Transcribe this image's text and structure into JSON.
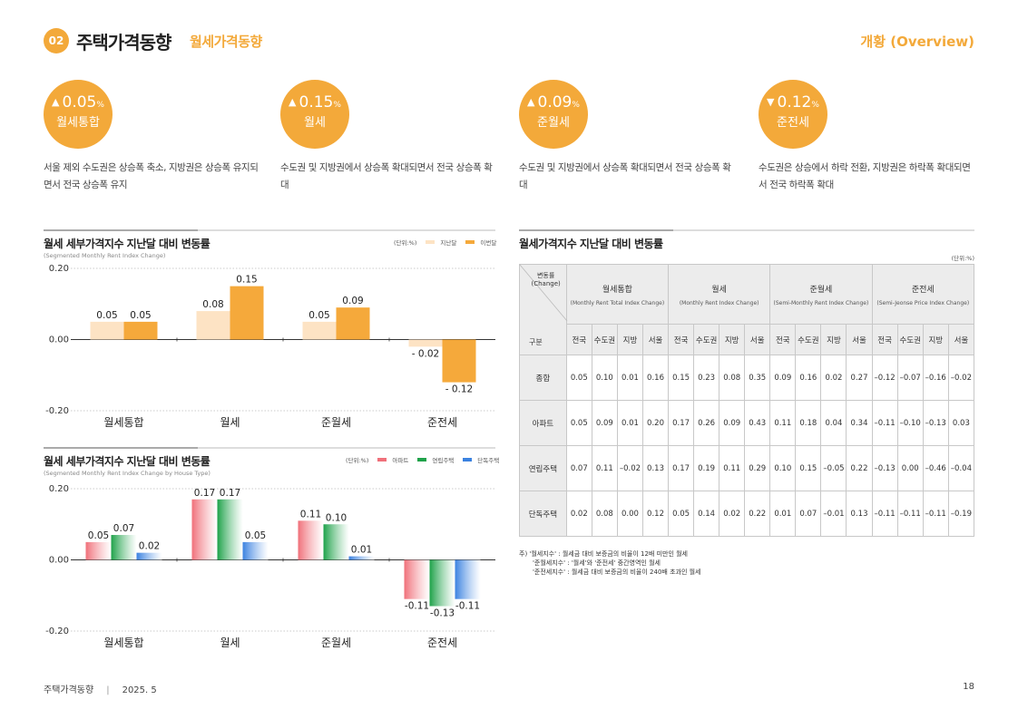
{
  "header": {
    "number": "02",
    "title": "주택가격동향",
    "subtitle": "월세가격동향",
    "right_label": "개황 (Overview)"
  },
  "summary": [
    {
      "direction": "up",
      "arrow": "▲",
      "value": "0.05",
      "unit": "%",
      "label": "월세통합",
      "text": "서울 제외 수도권은 상승폭 축소, 지방권은 상승폭 유지되면서 전국 상승폭 유지"
    },
    {
      "direction": "up",
      "arrow": "▲",
      "value": "0.15",
      "unit": "%",
      "label": "월세",
      "text": "수도권 및 지방권에서 상승폭 확대되면서 전국 상승폭 확대"
    },
    {
      "direction": "up",
      "arrow": "▲",
      "value": "0.09",
      "unit": "%",
      "label": "준월세",
      "text": "수도권 및 지방권에서 상승폭 확대되면서 전국 상승폭 확대"
    },
    {
      "direction": "down",
      "arrow": "▼",
      "value": "0.12",
      "unit": "%",
      "label": "준전세",
      "text": "수도권은 상승에서 하락 전환, 지방권은 하락폭 확대되면서 전국 하락폭 확대"
    }
  ],
  "chart1": {
    "title": "월세 세부가격지수 지난달 대비 변동률",
    "subtitle": "(Segmented Monthly Rent Index Change)",
    "unit": "(단위:%)"
  },
  "chart2": {
    "title": "월세 세부가격지수 지난달 대비 변동률",
    "subtitle": "(Segmented Monthly Rent Index Change by House Type)",
    "unit": "(단위:%)"
  },
  "chart_data": [
    {
      "type": "bar",
      "categories": [
        "월세통합",
        "월세",
        "준월세",
        "준전세"
      ],
      "series": [
        {
          "name": "지난달",
          "color": "#fde3c4",
          "values": [
            0.05,
            0.08,
            0.05,
            -0.02
          ],
          "labels": [
            "0.05",
            "0.08",
            "0.05",
            "- 0.02"
          ]
        },
        {
          "name": "이번달",
          "color": "#f5a93b",
          "values": [
            0.05,
            0.15,
            0.09,
            -0.12
          ],
          "labels": [
            "0.05",
            "0.15",
            "0.09",
            "- 0.12"
          ]
        }
      ],
      "ylim": [
        -0.2,
        0.2
      ],
      "ticks": [
        "0.20",
        "0.00",
        "-0.20"
      ],
      "legend": "top-right",
      "grid": true
    },
    {
      "type": "bar",
      "categories": [
        "월세통합",
        "월세",
        "준월세",
        "준전세"
      ],
      "series": [
        {
          "name": "아파트",
          "color": "#f0707a",
          "values": [
            0.05,
            0.17,
            0.11,
            -0.11
          ],
          "labels": [
            "0.05",
            "0.17",
            "0.11",
            "-0.11"
          ]
        },
        {
          "name": "연립주택",
          "color": "#1fa24a",
          "values": [
            0.07,
            0.17,
            0.1,
            -0.13
          ],
          "labels": [
            "0.07",
            "0.17",
            "0.10",
            "-0.13"
          ]
        },
        {
          "name": "단독주택",
          "color": "#3b82e0",
          "values": [
            0.02,
            0.05,
            0.01,
            -0.11
          ],
          "labels": [
            "0.02",
            "0.05",
            "0.01",
            "-0.11"
          ]
        }
      ],
      "ylim": [
        -0.2,
        0.2
      ],
      "ticks": [
        "0.20",
        "0.00",
        "-0.20"
      ],
      "legend": "top-right",
      "grid": true
    }
  ],
  "table": {
    "title": "월세가격지수 지난달 대비 변동률",
    "unit": "(단위:%)",
    "corner_top": "변동률",
    "corner_top_en": "(Change)",
    "corner_bottom": "구분",
    "groups": [
      {
        "name": "월세통합",
        "en": "(Monthly Rent Total Index Change)"
      },
      {
        "name": "월세",
        "en": "(Monthly Rent Index Change)"
      },
      {
        "name": "준월세",
        "en": "(Semi-Monthly Rent Index Change)"
      },
      {
        "name": "준전세",
        "en": "(Semi-Jeonse Price Index Change)"
      }
    ],
    "subcols": [
      "전국",
      "수도권",
      "지방",
      "서울"
    ],
    "rows": [
      {
        "label": "종합",
        "values": [
          "0.05",
          "0.10",
          "0.01",
          "0.16",
          "0.15",
          "0.23",
          "0.08",
          "0.35",
          "0.09",
          "0.16",
          "0.02",
          "0.27",
          "–0.12",
          "–0.07",
          "–0.16",
          "–0.02"
        ]
      },
      {
        "label": "아파트",
        "values": [
          "0.05",
          "0.09",
          "0.01",
          "0.20",
          "0.17",
          "0.26",
          "0.09",
          "0.43",
          "0.11",
          "0.18",
          "0.04",
          "0.34",
          "–0.11",
          "–0.10",
          "–0.13",
          "0.03"
        ]
      },
      {
        "label": "연립주택",
        "values": [
          "0.07",
          "0.11",
          "–0.02",
          "0.13",
          "0.17",
          "0.19",
          "0.11",
          "0.29",
          "0.10",
          "0.15",
          "–0.05",
          "0.22",
          "–0.13",
          "0.00",
          "–0.46",
          "–0.04"
        ]
      },
      {
        "label": "단독주택",
        "values": [
          "0.02",
          "0.08",
          "0.00",
          "0.12",
          "0.05",
          "0.14",
          "0.02",
          "0.22",
          "0.01",
          "0.07",
          "–0.01",
          "0.13",
          "–0.11",
          "–0.11",
          "–0.11",
          "–0.19"
        ]
      }
    ]
  },
  "notes": [
    "주) '월세지수' : 월세금 대비 보증금의 비율이 12배 미만인 월세",
    "'준월세지수' : '월세'와 '준전세' 중간영역인 월세",
    "'준전세지수' : 월세금 대비 보증금의 비율이 240배 초과인 월세"
  ],
  "footer": {
    "publication": "주택가격동향",
    "date": "2025. 5",
    "page": "18"
  }
}
